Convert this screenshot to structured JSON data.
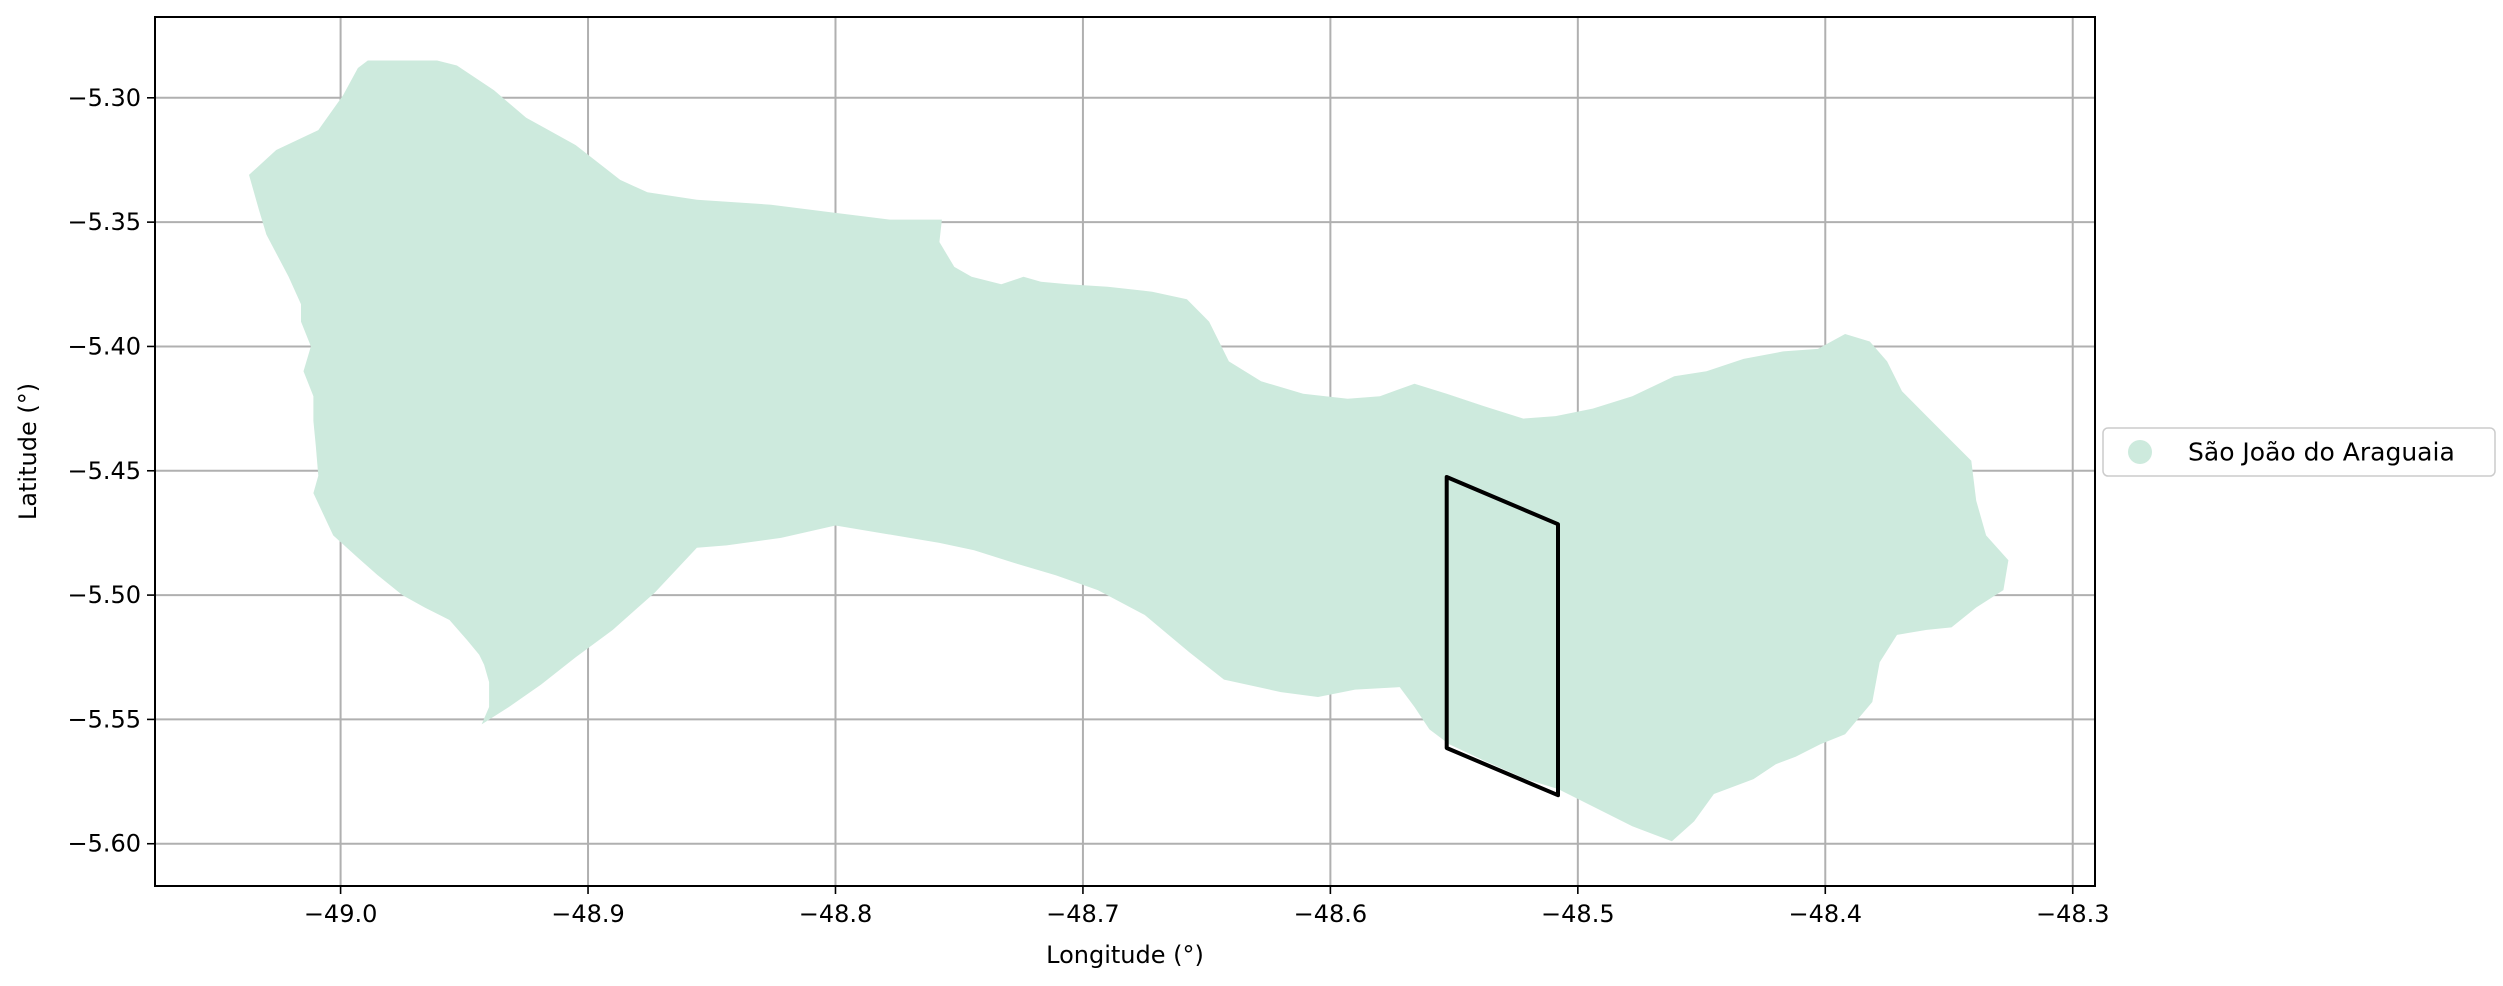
{
  "chart_data": {
    "type": "map",
    "xlabel": "Longitude (°)",
    "ylabel": "Latitude (°)",
    "xlim": [
      -49.075,
      -48.291
    ],
    "ylim": [
      -5.617,
      -5.2675
    ],
    "xticks": [
      -49.0,
      -48.9,
      -48.8,
      -48.7,
      -48.6,
      -48.5,
      -48.4,
      -48.3
    ],
    "xtick_labels": [
      "−49.0",
      "−48.9",
      "−48.8",
      "−48.7",
      "−48.6",
      "−48.5",
      "−48.4",
      "−48.3"
    ],
    "yticks": [
      -5.3,
      -5.35,
      -5.4,
      -5.45,
      -5.5,
      -5.55,
      -5.6
    ],
    "ytick_labels": [
      "−5.30",
      "−5.35",
      "−5.40",
      "−5.45",
      "−5.50",
      "−5.55",
      "−5.60"
    ],
    "grid": true,
    "legend_position": "right",
    "colors": {
      "region_fill": "#cdeadd",
      "boundary_stroke": "#000000",
      "grid": "#b0b0b0"
    },
    "series": [
      {
        "name": "São João do Araguaia",
        "kind": "polygon",
        "coordinates": [
          [
            -49.037,
            -5.331
          ],
          [
            -49.026,
            -5.321
          ],
          [
            -49.009,
            -5.313
          ],
          [
            -48.999,
            -5.299
          ],
          [
            -48.993,
            -5.288
          ],
          [
            -48.989,
            -5.285
          ],
          [
            -48.98,
            -5.285
          ],
          [
            -48.961,
            -5.285
          ],
          [
            -48.953,
            -5.287
          ],
          [
            -48.938,
            -5.297
          ],
          [
            -48.925,
            -5.308
          ],
          [
            -48.905,
            -5.319
          ],
          [
            -48.887,
            -5.333
          ],
          [
            -48.876,
            -5.338
          ],
          [
            -48.856,
            -5.341
          ],
          [
            -48.826,
            -5.343
          ],
          [
            -48.802,
            -5.346
          ],
          [
            -48.778,
            -5.349
          ],
          [
            -48.757,
            -5.349
          ],
          [
            -48.758,
            -5.358
          ],
          [
            -48.752,
            -5.368
          ],
          [
            -48.745,
            -5.372
          ],
          [
            -48.733,
            -5.375
          ],
          [
            -48.724,
            -5.372
          ],
          [
            -48.717,
            -5.374
          ],
          [
            -48.706,
            -5.375
          ],
          [
            -48.69,
            -5.376
          ],
          [
            -48.672,
            -5.378
          ],
          [
            -48.658,
            -5.381
          ],
          [
            -48.649,
            -5.39
          ],
          [
            -48.641,
            -5.406
          ],
          [
            -48.628,
            -5.414
          ],
          [
            -48.611,
            -5.419
          ],
          [
            -48.593,
            -5.421
          ],
          [
            -48.58,
            -5.42
          ],
          [
            -48.566,
            -5.415
          ],
          [
            -48.553,
            -5.419
          ],
          [
            -48.538,
            -5.424
          ],
          [
            -48.522,
            -5.429
          ],
          [
            -48.509,
            -5.428
          ],
          [
            -48.494,
            -5.425
          ],
          [
            -48.478,
            -5.42
          ],
          [
            -48.461,
            -5.412
          ],
          [
            -48.448,
            -5.41
          ],
          [
            -48.433,
            -5.405
          ],
          [
            -48.417,
            -5.402
          ],
          [
            -48.403,
            -5.401
          ],
          [
            -48.392,
            -5.395
          ],
          [
            -48.382,
            -5.398
          ],
          [
            -48.375,
            -5.406
          ],
          [
            -48.369,
            -5.418
          ],
          [
            -48.359,
            -5.428
          ],
          [
            -48.351,
            -5.436
          ],
          [
            -48.341,
            -5.446
          ],
          [
            -48.339,
            -5.462
          ],
          [
            -48.335,
            -5.476
          ],
          [
            -48.326,
            -5.486
          ],
          [
            -48.328,
            -5.498
          ],
          [
            -48.339,
            -5.505
          ],
          [
            -48.349,
            -5.513
          ],
          [
            -48.359,
            -5.514
          ],
          [
            -48.371,
            -5.516
          ],
          [
            -48.378,
            -5.527
          ],
          [
            -48.381,
            -5.543
          ],
          [
            -48.392,
            -5.556
          ],
          [
            -48.402,
            -5.56
          ],
          [
            -48.412,
            -5.565
          ],
          [
            -48.42,
            -5.568
          ],
          [
            -48.429,
            -5.574
          ],
          [
            -48.445,
            -5.58
          ],
          [
            -48.453,
            -5.591
          ],
          [
            -48.462,
            -5.599
          ],
          [
            -48.478,
            -5.593
          ],
          [
            -48.494,
            -5.585
          ],
          [
            -48.508,
            -5.578
          ],
          [
            -48.521,
            -5.574
          ],
          [
            -48.537,
            -5.567
          ],
          [
            -48.552,
            -5.56
          ],
          [
            -48.56,
            -5.554
          ],
          [
            -48.566,
            -5.545
          ],
          [
            -48.572,
            -5.537
          ],
          [
            -48.59,
            -5.538
          ],
          [
            -48.605,
            -5.541
          ],
          [
            -48.62,
            -5.539
          ],
          [
            -48.643,
            -5.534
          ],
          [
            -48.657,
            -5.523
          ],
          [
            -48.675,
            -5.508
          ],
          [
            -48.694,
            -5.498
          ],
          [
            -48.711,
            -5.492
          ],
          [
            -48.728,
            -5.487
          ],
          [
            -48.744,
            -5.482
          ],
          [
            -48.758,
            -5.479
          ],
          [
            -48.776,
            -5.476
          ],
          [
            -48.8,
            -5.472
          ],
          [
            -48.822,
            -5.477
          ],
          [
            -48.844,
            -5.48
          ],
          [
            -48.856,
            -5.481
          ],
          [
            -48.873,
            -5.499
          ],
          [
            -48.89,
            -5.514
          ],
          [
            -48.905,
            -5.525
          ],
          [
            -48.919,
            -5.536
          ],
          [
            -48.932,
            -5.545
          ],
          [
            -48.943,
            -5.552
          ],
          [
            -48.94,
            -5.545
          ],
          [
            -48.94,
            -5.535
          ],
          [
            -48.942,
            -5.528
          ],
          [
            -48.944,
            -5.524
          ],
          [
            -48.949,
            -5.518
          ],
          [
            -48.956,
            -5.51
          ],
          [
            -48.966,
            -5.505
          ],
          [
            -48.975,
            -5.5
          ],
          [
            -48.985,
            -5.492
          ],
          [
            -48.993,
            -5.485
          ],
          [
            -49.003,
            -5.476
          ],
          [
            -49.011,
            -5.459
          ],
          [
            -49.009,
            -5.452
          ],
          [
            -49.01,
            -5.44
          ],
          [
            -49.011,
            -5.43
          ],
          [
            -49.011,
            -5.42
          ],
          [
            -49.015,
            -5.41
          ],
          [
            -49.012,
            -5.4
          ],
          [
            -49.016,
            -5.39
          ],
          [
            -49.016,
            -5.383
          ],
          [
            -49.021,
            -5.372
          ],
          [
            -49.03,
            -5.355
          ],
          [
            -49.033,
            -5.345
          ],
          [
            -49.037,
            -5.331
          ]
        ]
      },
      {
        "kind": "outline",
        "coordinates": [
          [
            -48.553,
            -5.4525
          ],
          [
            -48.508,
            -5.4715
          ],
          [
            -48.508,
            -5.5805
          ],
          [
            -48.553,
            -5.5615
          ],
          [
            -48.553,
            -5.4525
          ]
        ]
      }
    ]
  }
}
